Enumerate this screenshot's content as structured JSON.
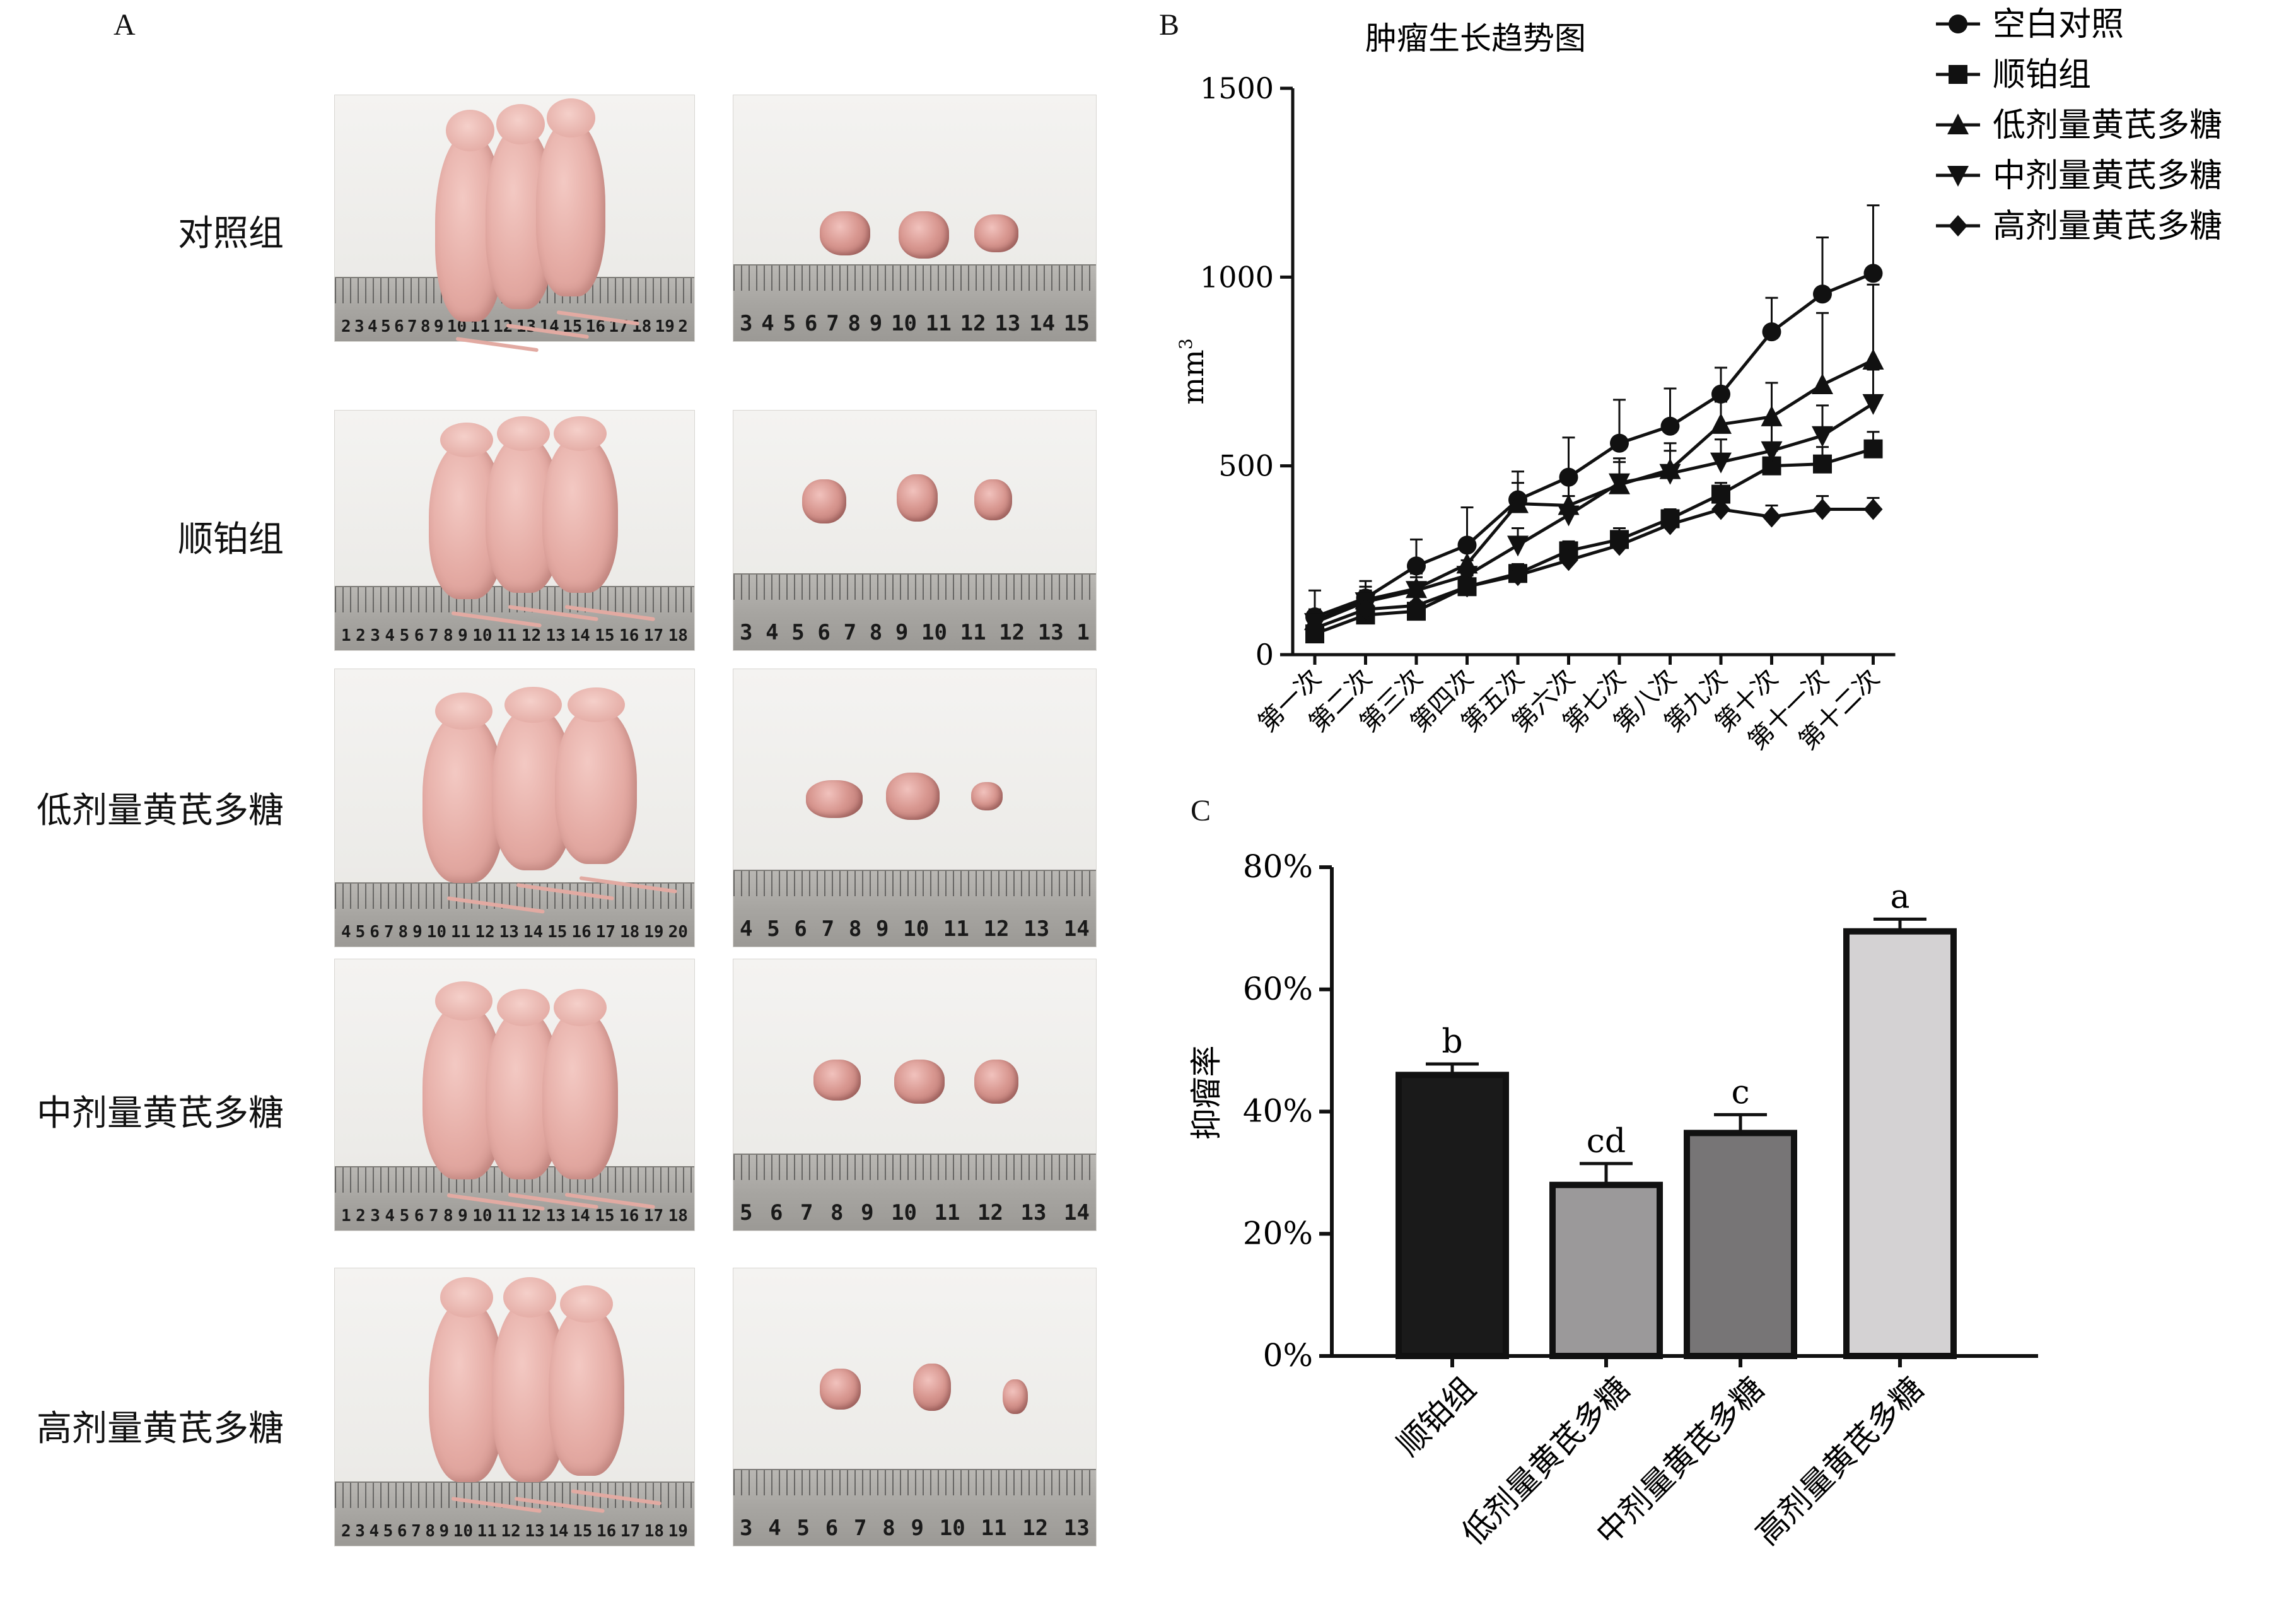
{
  "panels": {
    "a_letter": "A",
    "b_letter": "B",
    "c_letter": "C"
  },
  "panel_a": {
    "groups": [
      "对照组",
      "顺铂组",
      "低剂量黄芪多糖",
      "中剂量黄芪多糖",
      "高剂量黄芪多糖"
    ],
    "ruler_left": [
      [
        "2",
        "3",
        "4",
        "5",
        "6",
        "7",
        "8",
        "9",
        "10",
        "11",
        "12",
        "13",
        "14",
        "15",
        "16",
        "17",
        "18",
        "19",
        "2"
      ],
      [
        "1",
        "2",
        "3",
        "4",
        "5",
        "6",
        "7",
        "8",
        "9",
        "10",
        "11",
        "12",
        "13",
        "14",
        "15",
        "16",
        "17",
        "18"
      ],
      [
        "4",
        "5",
        "6",
        "7",
        "8",
        "9",
        "10",
        "11",
        "12",
        "13",
        "14",
        "15",
        "16",
        "17",
        "18",
        "19",
        "20"
      ],
      [
        "1",
        "2",
        "3",
        "4",
        "5",
        "6",
        "7",
        "8",
        "9",
        "10",
        "11",
        "12",
        "13",
        "14",
        "15",
        "16",
        "17",
        "18"
      ],
      [
        "2",
        "3",
        "4",
        "5",
        "6",
        "7",
        "8",
        "9",
        "10",
        "11",
        "12",
        "13",
        "14",
        "15",
        "16",
        "17",
        "18",
        "19"
      ]
    ],
    "ruler_right": [
      [
        "3",
        "4",
        "5",
        "6",
        "7",
        "8",
        "9",
        "10",
        "11",
        "12",
        "13",
        "14",
        "15"
      ],
      [
        "3",
        "4",
        "5",
        "6",
        "7",
        "8",
        "9",
        "10",
        "11",
        "12",
        "13",
        "1"
      ],
      [
        "4",
        "5",
        "6",
        "7",
        "8",
        "9",
        "10",
        "11",
        "12",
        "13",
        "14"
      ],
      [
        "5",
        "6",
        "7",
        "8",
        "9",
        "10",
        "11",
        "12",
        "13",
        "14"
      ],
      [
        "3",
        "4",
        "5",
        "6",
        "7",
        "8",
        "9",
        "10",
        "11",
        "12",
        "13"
      ]
    ]
  },
  "chart_data": [
    {
      "type": "line",
      "title": "肿瘤生长趋势图",
      "ylabel": "mm3",
      "ylabel_main": "mm",
      "ylabel_sup": "3",
      "ylim": [
        0,
        1500
      ],
      "yticks": [
        "0",
        "500",
        "1000",
        "1500"
      ],
      "categories": [
        "第一次",
        "第二次",
        "第三次",
        "第四次",
        "第五次",
        "第六次",
        "第七次",
        "第八次",
        "第九次",
        "第十次",
        "第十一次",
        "第十二次"
      ],
      "legend_position": "top-right",
      "series": [
        {
          "name": "空白对照",
          "marker": "circle",
          "values": [
            100,
            150,
            235,
            290,
            410,
            470,
            560,
            605,
            690,
            855,
            955,
            1010
          ],
          "errors": [
            70,
            45,
            70,
            100,
            75,
            105,
            115,
            100,
            70,
            90,
            150,
            180
          ]
        },
        {
          "name": "顺铂组",
          "marker": "square",
          "values": [
            55,
            105,
            115,
            180,
            215,
            275,
            305,
            360,
            425,
            500,
            505,
            545
          ],
          "errors": [
            20,
            20,
            25,
            30,
            20,
            25,
            30,
            25,
            30,
            40,
            45,
            45
          ]
        },
        {
          "name": "低剂量黄芪多糖",
          "marker": "triangle-up",
          "values": [
            90,
            145,
            175,
            240,
            400,
            395,
            450,
            490,
            610,
            630,
            715,
            780
          ],
          "errors": [
            30,
            35,
            40,
            45,
            55,
            60,
            70,
            70,
            60,
            90,
            190,
            200
          ]
        },
        {
          "name": "中剂量黄芪多糖",
          "marker": "triangle-down",
          "values": [
            85,
            140,
            170,
            210,
            290,
            370,
            455,
            480,
            510,
            540,
            580,
            665
          ],
          "errors": [
            25,
            30,
            35,
            40,
            45,
            50,
            55,
            60,
            60,
            70,
            80,
            90
          ]
        },
        {
          "name": "高剂量黄芪多糖",
          "marker": "diamond",
          "values": [
            70,
            120,
            130,
            180,
            210,
            250,
            290,
            345,
            385,
            365,
            385,
            385
          ],
          "errors": [
            20,
            25,
            25,
            30,
            30,
            30,
            35,
            35,
            40,
            30,
            35,
            30
          ]
        }
      ]
    },
    {
      "type": "bar",
      "ylabel": "抑瘤率",
      "ylim": [
        0,
        80
      ],
      "yticks": [
        "0%",
        "20%",
        "40%",
        "60%",
        "80%"
      ],
      "categories": [
        "顺铂组",
        "低剂量黄芪多糖",
        "中剂量黄芪多糖",
        "高剂量黄芪多糖"
      ],
      "values": [
        46,
        28,
        36.5,
        69.5
      ],
      "errors": [
        1.8,
        3.5,
        3.0,
        2.0
      ],
      "significance": [
        "b",
        "cd",
        "c",
        "a"
      ],
      "colors": [
        "#1a1a1a",
        "#9b999a",
        "#777576",
        "#d4d2d3"
      ]
    }
  ]
}
